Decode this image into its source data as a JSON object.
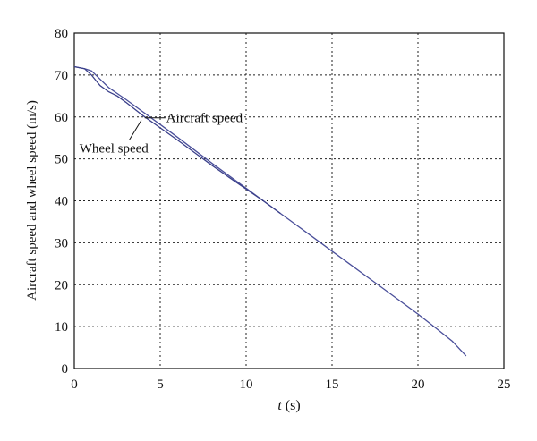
{
  "chart_data": {
    "type": "line",
    "title": "",
    "xlabel_italic": "t",
    "xlabel_rest": " (s)",
    "ylabel": "Aircraft speed and wheel speed (m/s)",
    "xlim": [
      0,
      25
    ],
    "ylim": [
      0,
      80
    ],
    "xticks": [
      0,
      5,
      10,
      15,
      20,
      25
    ],
    "yticks": [
      0,
      10,
      20,
      30,
      40,
      50,
      60,
      70,
      80
    ],
    "grid": true,
    "series": [
      {
        "name": "Aircraft speed",
        "color": "#4a4f9a",
        "x": [
          0,
          0.6,
          1.0,
          1.3,
          2,
          3,
          4,
          5,
          6,
          7,
          8,
          9,
          10,
          11,
          12,
          13,
          14,
          15,
          16,
          17,
          18,
          19,
          20,
          21,
          22,
          22.8
        ],
        "y": [
          72,
          71.5,
          71,
          69.8,
          67,
          64.2,
          61.2,
          58.2,
          55.2,
          52.1,
          49,
          46,
          43,
          40,
          37,
          34,
          31,
          28,
          25,
          22,
          19,
          16,
          13,
          9.8,
          6.5,
          3
        ]
      },
      {
        "name": "Wheel speed",
        "color": "#3a3f8a",
        "x": [
          0,
          0.6,
          1.0,
          1.5,
          2,
          2.5,
          3,
          4,
          5,
          6,
          7,
          8,
          9,
          10,
          11,
          12
        ],
        "y": [
          72,
          71.5,
          70,
          67.5,
          66,
          65,
          63.5,
          60.3,
          57.4,
          54.5,
          51.5,
          48.5,
          45.6,
          42.8,
          40,
          37
        ]
      }
    ],
    "annotations": [
      {
        "text": "Aircraft speed",
        "target_series": "Aircraft speed"
      },
      {
        "text": "Wheel speed",
        "target_series": "Wheel speed"
      }
    ]
  }
}
